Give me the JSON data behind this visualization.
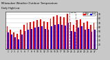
{
  "title": "Milwaukee Weather Outdoor Temperature",
  "subtitle": "Daily High/Low",
  "days": [
    "1",
    "2",
    "3",
    "4",
    "5",
    "6",
    "7",
    "8",
    "9",
    "10",
    "11",
    "12",
    "13",
    "14",
    "15",
    "16",
    "17",
    "18",
    "19",
    "20",
    "21",
    "22",
    "23",
    "24",
    "25",
    "26",
    "27"
  ],
  "highs": [
    62,
    55,
    48,
    45,
    55,
    65,
    70,
    72,
    74,
    76,
    79,
    74,
    72,
    80,
    84,
    87,
    85,
    83,
    91,
    72,
    65,
    76,
    78,
    70,
    73,
    66,
    70
  ],
  "lows": [
    48,
    44,
    38,
    32,
    44,
    52,
    55,
    57,
    59,
    61,
    63,
    57,
    55,
    63,
    66,
    68,
    66,
    64,
    70,
    52,
    50,
    60,
    62,
    54,
    56,
    50,
    54
  ],
  "high_color": "#ff0000",
  "low_color": "#0000ff",
  "bg_color": "#c8c8c8",
  "plot_bg": "#ffffff",
  "ylim": [
    10,
    95
  ],
  "yticks": [
    20,
    30,
    40,
    50,
    60,
    70,
    80,
    90
  ],
  "ytick_labels": [
    "20",
    "30",
    "40",
    "50",
    "60",
    "70",
    "80",
    "90"
  ],
  "highlight_indices": [
    19,
    20
  ],
  "bar_width": 0.38,
  "legend_items": [
    "High",
    "Low"
  ],
  "legend_colors": [
    "#ff0000",
    "#0000ff"
  ]
}
